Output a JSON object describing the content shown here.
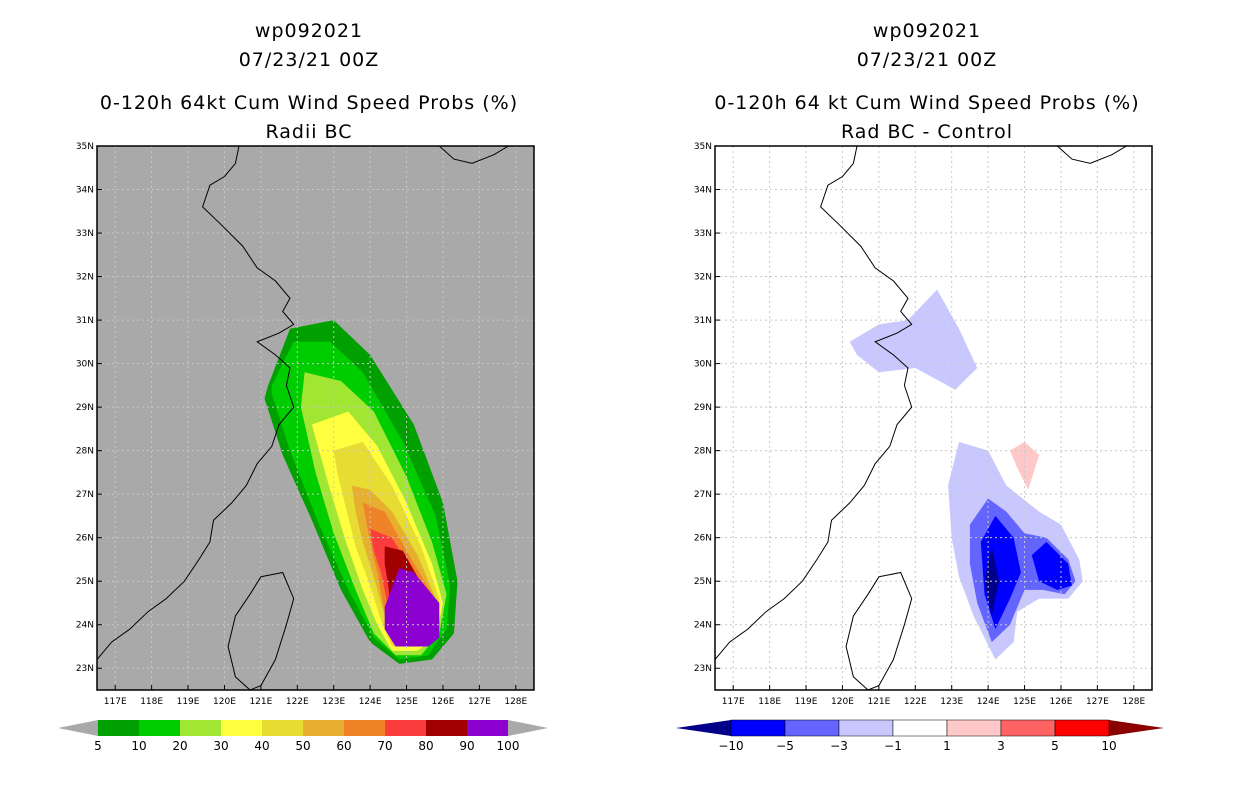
{
  "left_panel": {
    "title_line1": "wp092021",
    "title_line2": "07/23/21 00Z",
    "title_line3": "0-120h 64kt Cum Wind Speed Probs (%)",
    "title_line4": "Radii BC"
  },
  "right_panel": {
    "title_line1": "wp092021",
    "title_line2": "07/23/21 00Z",
    "title_line3": "0-120h 64 kt Cum Wind Speed Probs (%)",
    "title_line4": "Rad BC - Control"
  },
  "chart_data": [
    {
      "type": "heatmap",
      "title": "0-120h 64kt Cum Wind Speed Probs (%) Radii BC",
      "x_ticks": [
        "117E",
        "118E",
        "119E",
        "120E",
        "121E",
        "122E",
        "123E",
        "124E",
        "125E",
        "126E",
        "127E",
        "128E"
      ],
      "y_ticks": [
        "23N",
        "24N",
        "25N",
        "26N",
        "27N",
        "28N",
        "29N",
        "30N",
        "31N",
        "32N",
        "33N",
        "34N",
        "35N"
      ],
      "xlim": [
        116.5,
        128.5
      ],
      "ylim": [
        22.5,
        35
      ],
      "background_color": "#a9a9a9",
      "levels": [
        5,
        10,
        20,
        30,
        40,
        50,
        60,
        70,
        80,
        90,
        100
      ],
      "level_labels": [
        "5",
        "10",
        "20",
        "30",
        "40",
        "50",
        "60",
        "70",
        "80",
        "90",
        "100"
      ],
      "colors": [
        "#00a000",
        "#00cd00",
        "#a0e632",
        "#ffff3f",
        "#e6dc32",
        "#e6af2d",
        "#f08228",
        "#fa3c3c",
        "#a00000",
        "#8c00d0"
      ],
      "contours": [
        {
          "level": 5,
          "polygon": [
            [
              121.2,
              29.5
            ],
            [
              121.8,
              30.8
            ],
            [
              123.0,
              31.0
            ],
            [
              124.0,
              30.2
            ],
            [
              125.2,
              28.6
            ],
            [
              126.0,
              26.8
            ],
            [
              126.4,
              25.0
            ],
            [
              126.3,
              23.8
            ],
            [
              125.7,
              23.2
            ],
            [
              124.8,
              23.1
            ],
            [
              124.0,
              23.6
            ],
            [
              123.2,
              24.8
            ],
            [
              122.4,
              26.4
            ],
            [
              121.6,
              27.9
            ],
            [
              121.1,
              29.2
            ]
          ]
        },
        {
          "level": 10,
          "polygon": [
            [
              121.3,
              29.5
            ],
            [
              121.9,
              30.5
            ],
            [
              122.9,
              30.5
            ],
            [
              123.8,
              29.8
            ],
            [
              124.9,
              28.2
            ],
            [
              125.8,
              26.5
            ],
            [
              126.2,
              24.9
            ],
            [
              126.1,
              23.9
            ],
            [
              125.6,
              23.3
            ],
            [
              124.8,
              23.2
            ],
            [
              124.1,
              23.7
            ],
            [
              123.4,
              24.8
            ],
            [
              122.6,
              26.3
            ],
            [
              121.8,
              28.0
            ],
            [
              121.3,
              29.3
            ]
          ]
        },
        {
          "level": 20,
          "polygon": [
            [
              122.2,
              29.8
            ],
            [
              123.2,
              29.6
            ],
            [
              124.1,
              28.9
            ],
            [
              125.0,
              27.4
            ],
            [
              125.7,
              25.9
            ],
            [
              126.1,
              24.7
            ],
            [
              125.9,
              23.8
            ],
            [
              125.4,
              23.3
            ],
            [
              124.7,
              23.3
            ],
            [
              124.1,
              23.8
            ],
            [
              123.6,
              24.8
            ],
            [
              123.0,
              26.1
            ],
            [
              122.5,
              27.5
            ],
            [
              122.1,
              29.0
            ]
          ]
        },
        {
          "level": 30,
          "polygon": [
            [
              122.4,
              28.6
            ],
            [
              123.4,
              28.9
            ],
            [
              124.2,
              28.1
            ],
            [
              125.0,
              26.8
            ],
            [
              125.7,
              25.4
            ],
            [
              126.0,
              24.5
            ],
            [
              125.8,
              23.7
            ],
            [
              125.3,
              23.4
            ],
            [
              124.6,
              23.4
            ],
            [
              124.2,
              24.0
            ],
            [
              123.8,
              24.8
            ],
            [
              123.3,
              26.0
            ],
            [
              122.9,
              27.1
            ],
            [
              122.6,
              28.0
            ]
          ]
        },
        {
          "level": 40,
          "polygon": [
            [
              123.0,
              28.0
            ],
            [
              123.8,
              28.2
            ],
            [
              124.6,
              27.2
            ],
            [
              125.4,
              25.8
            ],
            [
              125.9,
              24.6
            ],
            [
              125.8,
              23.8
            ],
            [
              125.3,
              23.5
            ],
            [
              124.6,
              23.5
            ],
            [
              124.3,
              24.1
            ],
            [
              124.0,
              24.9
            ],
            [
              123.6,
              25.8
            ],
            [
              123.3,
              26.8
            ],
            [
              123.1,
              27.5
            ]
          ]
        },
        {
          "level": 50,
          "polygon": [
            [
              123.5,
              27.2
            ],
            [
              124.0,
              27.1
            ],
            [
              124.6,
              26.6
            ],
            [
              125.3,
              25.6
            ],
            [
              125.8,
              24.6
            ],
            [
              125.7,
              23.8
            ],
            [
              125.2,
              23.5
            ],
            [
              124.6,
              23.6
            ],
            [
              124.4,
              24.2
            ],
            [
              124.1,
              25.1
            ],
            [
              123.8,
              25.9
            ],
            [
              123.6,
              26.6
            ]
          ]
        },
        {
          "level": 60,
          "polygon": [
            [
              123.8,
              26.8
            ],
            [
              124.4,
              26.6
            ],
            [
              125.0,
              25.7
            ],
            [
              125.7,
              24.7
            ],
            [
              125.6,
              23.9
            ],
            [
              125.1,
              23.6
            ],
            [
              124.6,
              23.7
            ],
            [
              124.4,
              24.3
            ],
            [
              124.2,
              25.2
            ],
            [
              124.0,
              25.9
            ]
          ]
        },
        {
          "level": 70,
          "polygon": [
            [
              124.0,
              26.2
            ],
            [
              124.6,
              26.0
            ],
            [
              125.1,
              25.3
            ],
            [
              125.6,
              24.6
            ],
            [
              125.5,
              23.9
            ],
            [
              125.1,
              23.7
            ],
            [
              124.6,
              23.8
            ],
            [
              124.5,
              24.4
            ],
            [
              124.3,
              25.2
            ],
            [
              124.1,
              25.7
            ]
          ]
        },
        {
          "level": 80,
          "polygon": [
            [
              124.4,
              25.8
            ],
            [
              124.9,
              25.7
            ],
            [
              125.5,
              24.8
            ],
            [
              125.4,
              24.0
            ],
            [
              124.9,
              23.8
            ],
            [
              124.6,
              24.1
            ],
            [
              124.5,
              24.9
            ],
            [
              124.4,
              25.4
            ]
          ]
        },
        {
          "level": 90,
          "polygon": [
            [
              124.4,
              24.4
            ],
            [
              124.8,
              25.3
            ],
            [
              125.2,
              25.2
            ],
            [
              125.9,
              24.5
            ],
            [
              125.9,
              23.7
            ],
            [
              125.6,
              23.5
            ],
            [
              124.7,
              23.5
            ],
            [
              124.4,
              23.9
            ]
          ]
        }
      ]
    },
    {
      "type": "heatmap",
      "title": "0-120h 64 kt Cum Wind Speed Probs (%) Rad BC - Control",
      "x_ticks": [
        "117E",
        "118E",
        "119E",
        "120E",
        "121E",
        "122E",
        "123E",
        "124E",
        "125E",
        "126E",
        "127E",
        "128E"
      ],
      "y_ticks": [
        "23N",
        "24N",
        "25N",
        "26N",
        "27N",
        "28N",
        "29N",
        "30N",
        "31N",
        "32N",
        "33N",
        "34N",
        "35N"
      ],
      "xlim": [
        116.5,
        128.5
      ],
      "ylim": [
        22.5,
        35
      ],
      "background_color": "#ffffff",
      "levels": [
        -10,
        -5,
        -3,
        -1,
        1,
        3,
        5,
        10
      ],
      "level_labels": [
        "-10",
        "-5",
        "-3",
        "-1",
        "1",
        "3",
        "5",
        "10"
      ],
      "colors": [
        "#00008b",
        "#0000ff",
        "#6464ff",
        "#c8c8ff",
        "#ffffff",
        "#ffc8c8",
        "#ff6464",
        "#ff0000",
        "#8b0000"
      ],
      "contours": [
        {
          "level": -1,
          "polygon": [
            [
              120.2,
              30.5
            ],
            [
              121.0,
              30.9
            ],
            [
              121.8,
              31.0
            ],
            [
              122.6,
              31.7
            ],
            [
              123.2,
              30.8
            ],
            [
              123.7,
              29.9
            ],
            [
              123.1,
              29.4
            ],
            [
              122.0,
              29.9
            ],
            [
              121.0,
              29.8
            ],
            [
              120.4,
              30.2
            ]
          ]
        },
        {
          "level": -1,
          "polygon": [
            [
              122.9,
              27.2
            ],
            [
              123.2,
              28.2
            ],
            [
              124.0,
              28.0
            ],
            [
              124.5,
              27.2
            ],
            [
              125.4,
              26.6
            ],
            [
              126.0,
              26.3
            ],
            [
              126.5,
              25.5
            ],
            [
              126.6,
              25.0
            ],
            [
              126.2,
              24.6
            ],
            [
              125.4,
              24.6
            ],
            [
              124.8,
              24.3
            ],
            [
              124.7,
              23.6
            ],
            [
              124.2,
              23.2
            ],
            [
              123.6,
              24.2
            ],
            [
              123.2,
              25.1
            ],
            [
              123.0,
              26.0
            ]
          ]
        },
        {
          "level": -3,
          "polygon": [
            [
              123.5,
              26.3
            ],
            [
              124.0,
              26.9
            ],
            [
              124.5,
              26.6
            ],
            [
              125.0,
              26.1
            ],
            [
              125.6,
              26.0
            ],
            [
              126.2,
              25.5
            ],
            [
              126.4,
              25.0
            ],
            [
              126.1,
              24.7
            ],
            [
              125.5,
              24.8
            ],
            [
              125.0,
              24.8
            ],
            [
              124.6,
              24.0
            ],
            [
              124.1,
              23.6
            ],
            [
              123.7,
              24.5
            ],
            [
              123.5,
              25.4
            ]
          ]
        },
        {
          "level": -5,
          "polygon": [
            [
              123.8,
              25.9
            ],
            [
              124.2,
              26.5
            ],
            [
              124.7,
              26.0
            ],
            [
              124.9,
              25.2
            ],
            [
              124.6,
              24.6
            ],
            [
              124.2,
              23.9
            ],
            [
              123.9,
              24.7
            ]
          ]
        },
        {
          "level": -5,
          "polygon": [
            [
              125.2,
              25.6
            ],
            [
              125.6,
              25.9
            ],
            [
              126.2,
              25.4
            ],
            [
              126.3,
              24.9
            ],
            [
              125.9,
              24.8
            ],
            [
              125.4,
              25.0
            ]
          ]
        },
        {
          "level": -10,
          "polygon": [
            [
              123.9,
              25.0
            ],
            [
              124.1,
              25.8
            ],
            [
              124.3,
              25.0
            ],
            [
              124.1,
              24.2
            ]
          ]
        },
        {
          "level": 1,
          "polygon": [
            [
              124.6,
              28.0
            ],
            [
              125.0,
              28.2
            ],
            [
              125.4,
              27.9
            ],
            [
              125.1,
              27.1
            ],
            [
              124.8,
              27.6
            ]
          ]
        }
      ]
    }
  ]
}
